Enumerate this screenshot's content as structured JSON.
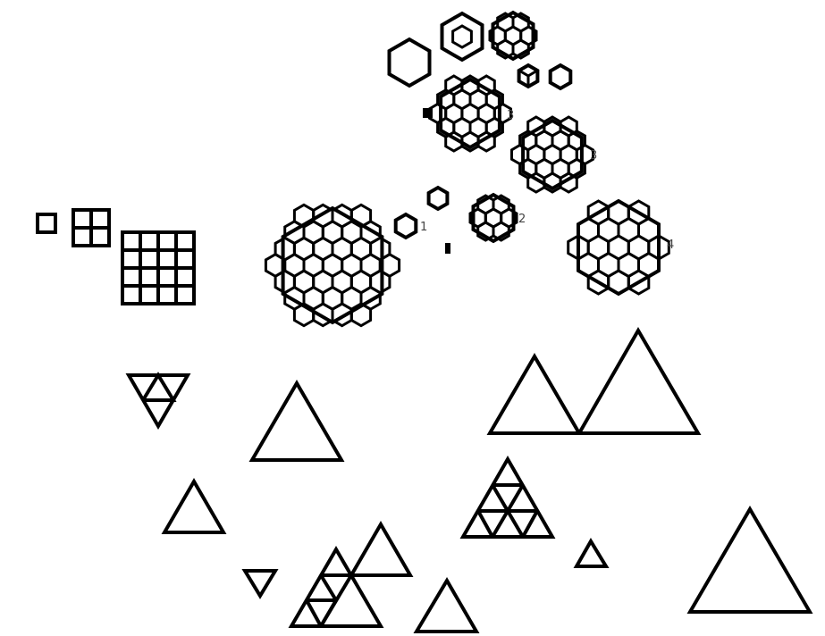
{
  "figure": {
    "hex_labels": [
      "3",
      "3",
      "1",
      "2",
      "4"
    ]
  }
}
